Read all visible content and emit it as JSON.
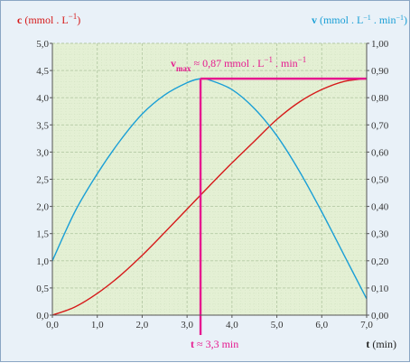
{
  "chart_data": {
    "type": "line",
    "left_axis": {
      "bold": "c",
      "unit_prefix": "(mmol . L",
      "unit_exp": "−1",
      "unit_suffix": ")",
      "ticks": [
        "0,0",
        "0,5",
        "1,0",
        "1,5",
        "2,0",
        "2,5",
        "3,0",
        "3,5",
        "4,0",
        "4,5",
        "5,0"
      ],
      "ylim": [
        0,
        5
      ],
      "color": "#d61a1a"
    },
    "right_axis": {
      "bold": "v",
      "unit_a": "(mmol . L",
      "unit_a_exp": "−1",
      "unit_b": " . min",
      "unit_b_exp": "−1",
      "unit_suffix": ")",
      "ticks": [
        "0,00",
        "0,10",
        "0,20",
        "0,30",
        "0,40",
        "0,50",
        "0,60",
        "0,70",
        "0,80",
        "0,90",
        "1,00"
      ],
      "ylim": [
        0,
        1
      ],
      "color": "#1a9fd6"
    },
    "x_axis": {
      "bold": "t",
      "unit": " (min)",
      "ticks": [
        "0,0",
        "1,0",
        "2,0",
        "3,0",
        "4,0",
        "5,0",
        "6,0",
        "7,0"
      ],
      "xlim": [
        0,
        7
      ]
    },
    "grid": true,
    "series": [
      {
        "axis": "left",
        "color": "#d61a1a",
        "x": [
          0,
          0.5,
          1,
          1.5,
          2,
          2.5,
          3,
          3.5,
          4,
          4.5,
          5,
          5.5,
          6,
          6.5,
          7
        ],
        "values": [
          0,
          0.15,
          0.4,
          0.72,
          1.1,
          1.52,
          1.95,
          2.38,
          2.8,
          3.2,
          3.6,
          3.92,
          4.15,
          4.3,
          4.35
        ]
      },
      {
        "axis": "right",
        "color": "#1a9fd6",
        "x": [
          0,
          0.5,
          1,
          1.5,
          2,
          2.5,
          3,
          3.3,
          3.5,
          4,
          4.5,
          5,
          5.5,
          6,
          6.5,
          7
        ],
        "values": [
          0.2,
          0.38,
          0.52,
          0.64,
          0.74,
          0.81,
          0.855,
          0.87,
          0.865,
          0.83,
          0.76,
          0.66,
          0.53,
          0.38,
          0.22,
          0.06
        ]
      }
    ],
    "annotations": {
      "color": "#e6198f",
      "vmax_value": 0.87,
      "t_value": 3.3,
      "vmax_label": {
        "sym": "v",
        "sub": "max",
        "text": " ≈ 0,87 mmol . L",
        "exp1": "−1",
        "mid": " . min",
        "exp2": "−1"
      },
      "t_label": {
        "sym": "t",
        "text": " ≈ 3,3 min"
      }
    }
  }
}
